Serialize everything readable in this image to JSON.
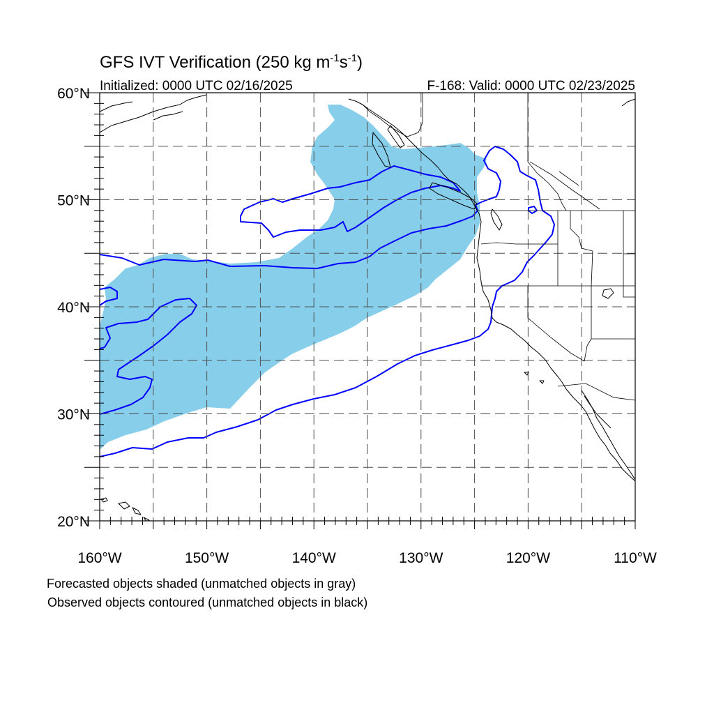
{
  "title": {
    "main": "GFS IVT Verification (250 kg m",
    "exp1": "-1",
    "mid": "s",
    "exp2": "-1",
    "close": ")"
  },
  "subtitle": {
    "left": "Initialized: 0000 UTC 02/16/2025",
    "right": "F-168: Valid: 0000 UTC 02/23/2025"
  },
  "map": {
    "lon_range": [
      -160,
      -110
    ],
    "lat_range": [
      20,
      60
    ],
    "grid_lons": [
      -155,
      -150,
      -145,
      -140,
      -135,
      -130,
      -125,
      -120,
      -115
    ],
    "grid_lats": [
      25,
      30,
      35,
      40,
      45,
      50,
      55
    ],
    "lon_labels": [
      {
        "lon": -160,
        "label": "160°W"
      },
      {
        "lon": -150,
        "label": "150°W"
      },
      {
        "lon": -140,
        "label": "140°W"
      },
      {
        "lon": -130,
        "label": "130°W"
      },
      {
        "lon": -120,
        "label": "120°W"
      },
      {
        "lon": -110,
        "label": "110°W"
      }
    ],
    "lat_labels": [
      {
        "lat": 60,
        "label": "60°N"
      },
      {
        "lat": 50,
        "label": "50°N"
      },
      {
        "lat": 40,
        "label": "40°N"
      },
      {
        "lat": 30,
        "label": "30°N"
      },
      {
        "lat": 20,
        "label": "20°N"
      }
    ],
    "forecast_color": "#87ceeb",
    "observed_color": "#0000ff"
  },
  "notes": {
    "line1": "Forecasted objects shaded (unmatched objects in gray)",
    "line2": "Observed objects contoured (unmatched objects in black)"
  }
}
